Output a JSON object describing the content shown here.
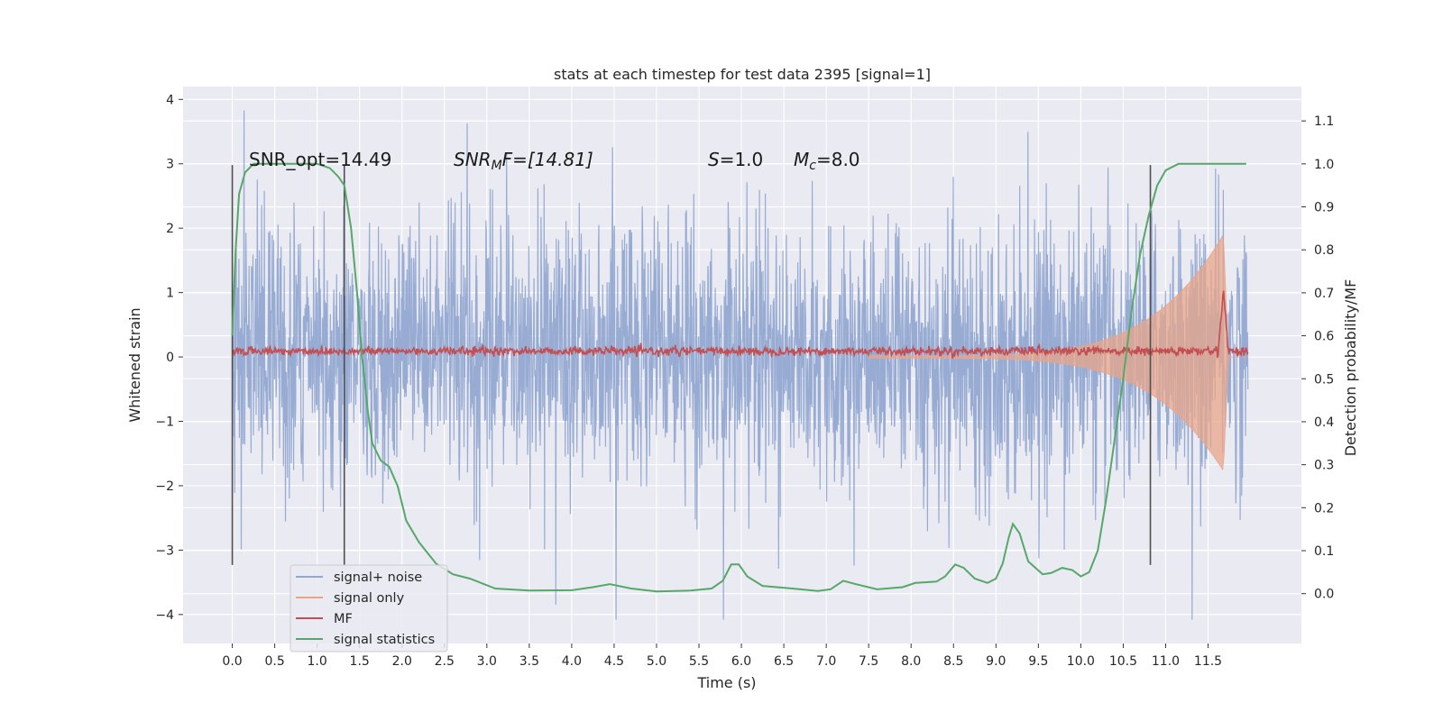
{
  "chart_data": {
    "type": "line",
    "title": "stats at each timestep for test data 2395 [signal=1]",
    "xlabel": "Time (s)",
    "ylabel": "Whitened strain",
    "y2label": "Detection probability/MF",
    "xlim": [
      -0.58,
      12.6
    ],
    "ylim": [
      -4.45,
      4.2
    ],
    "y2lim": [
      -0.116,
      1.18
    ],
    "xticks": [
      0.0,
      0.5,
      1.0,
      1.5,
      2.0,
      2.5,
      3.0,
      3.5,
      4.0,
      4.5,
      5.0,
      5.5,
      6.0,
      6.5,
      7.0,
      7.5,
      8.0,
      8.5,
      9.0,
      9.5,
      10.0,
      10.5,
      11.0,
      11.5
    ],
    "xtick_labels": [
      "0.0",
      "0.5",
      "1.0",
      "1.5",
      "2.0",
      "2.5",
      "3.0",
      "3.5",
      "4.0",
      "4.5",
      "5.0",
      "5.5",
      "6.0",
      "6.5",
      "7.0",
      "7.5",
      "8.0",
      "8.5",
      "9.0",
      "9.5",
      "10.0",
      "10.5",
      "11.0",
      "11.5"
    ],
    "yticks": [
      -4,
      -3,
      -2,
      -1,
      0,
      1,
      2,
      3,
      4
    ],
    "ytick_labels": [
      "−4",
      "−3",
      "−2",
      "−1",
      "0",
      "1",
      "2",
      "3",
      "4"
    ],
    "y2ticks": [
      0.0,
      0.1,
      0.2,
      0.3,
      0.4,
      0.5,
      0.6,
      0.7,
      0.8,
      0.9,
      1.0,
      1.1
    ],
    "y2tick_labels": [
      "0.0",
      "0.1",
      "0.2",
      "0.3",
      "0.4",
      "0.5",
      "0.6",
      "0.7",
      "0.8",
      "0.9",
      "1.0",
      "1.1"
    ],
    "grid": true,
    "legend_position": "lower-left",
    "annotations": {
      "snr_opt": "SNR_opt=14.49",
      "snr_mf_base": "SNR",
      "snr_mf_sub": "M",
      "snr_mf_rest": "F=[14.81]",
      "s_var": "S",
      "s_val": "=1.0",
      "mc_var": "M",
      "mc_sub": "c",
      "mc_val": "=8.0"
    },
    "vertical_markers": [
      0.0,
      1.32,
      10.82
    ],
    "vertical_marker_range": [
      -3.23,
      2.98
    ],
    "series": [
      {
        "name": "signal+ noise",
        "color": "#92a8d1",
        "t_range": [
          0.0,
          11.97
        ],
        "typical_amplitude": 1.1,
        "max": 3.83,
        "min": -4.08
      },
      {
        "name": "signal only",
        "color": "#e8a58a",
        "t_range": [
          7.5,
          11.97
        ],
        "amplitude_at_start": 0.02,
        "amplitude_peak": 1.9,
        "peak_time": 11.68
      },
      {
        "name": "MF",
        "color": "#c44e52",
        "t_range": [
          0.0,
          11.97
        ],
        "baseline": 0.09,
        "noise": 0.06,
        "peak_time": 11.68,
        "peak_value": 1.05
      },
      {
        "name": "signal statistics",
        "color": "#55a868",
        "axis": "right",
        "points": [
          [
            0.0,
            0.6
          ],
          [
            0.04,
            0.8
          ],
          [
            0.08,
            0.93
          ],
          [
            0.15,
            0.98
          ],
          [
            0.25,
            1.0
          ],
          [
            0.5,
            1.0
          ],
          [
            0.75,
            1.0
          ],
          [
            1.0,
            1.0
          ],
          [
            1.15,
            0.99
          ],
          [
            1.25,
            0.97
          ],
          [
            1.32,
            0.95
          ],
          [
            1.4,
            0.85
          ],
          [
            1.47,
            0.7
          ],
          [
            1.53,
            0.55
          ],
          [
            1.6,
            0.42
          ],
          [
            1.65,
            0.35
          ],
          [
            1.75,
            0.31
          ],
          [
            1.85,
            0.295
          ],
          [
            1.95,
            0.25
          ],
          [
            2.05,
            0.17
          ],
          [
            2.2,
            0.12
          ],
          [
            2.4,
            0.07
          ],
          [
            2.6,
            0.045
          ],
          [
            2.8,
            0.035
          ],
          [
            3.1,
            0.012
          ],
          [
            3.5,
            0.007
          ],
          [
            4.0,
            0.008
          ],
          [
            4.25,
            0.015
          ],
          [
            4.45,
            0.022
          ],
          [
            4.7,
            0.012
          ],
          [
            5.0,
            0.005
          ],
          [
            5.4,
            0.007
          ],
          [
            5.65,
            0.012
          ],
          [
            5.78,
            0.03
          ],
          [
            5.88,
            0.068
          ],
          [
            5.97,
            0.068
          ],
          [
            6.07,
            0.04
          ],
          [
            6.25,
            0.018
          ],
          [
            6.6,
            0.012
          ],
          [
            6.9,
            0.006
          ],
          [
            7.05,
            0.01
          ],
          [
            7.2,
            0.03
          ],
          [
            7.35,
            0.022
          ],
          [
            7.6,
            0.01
          ],
          [
            7.9,
            0.015
          ],
          [
            8.05,
            0.025
          ],
          [
            8.3,
            0.028
          ],
          [
            8.4,
            0.04
          ],
          [
            8.52,
            0.068
          ],
          [
            8.62,
            0.06
          ],
          [
            8.75,
            0.035
          ],
          [
            8.9,
            0.025
          ],
          [
            9.0,
            0.035
          ],
          [
            9.08,
            0.07
          ],
          [
            9.15,
            0.13
          ],
          [
            9.2,
            0.162
          ],
          [
            9.28,
            0.14
          ],
          [
            9.38,
            0.075
          ],
          [
            9.55,
            0.045
          ],
          [
            9.65,
            0.048
          ],
          [
            9.78,
            0.06
          ],
          [
            9.9,
            0.055
          ],
          [
            10.0,
            0.04
          ],
          [
            10.1,
            0.05
          ],
          [
            10.2,
            0.1
          ],
          [
            10.3,
            0.22
          ],
          [
            10.4,
            0.36
          ],
          [
            10.5,
            0.5
          ],
          [
            10.6,
            0.66
          ],
          [
            10.7,
            0.79
          ],
          [
            10.8,
            0.88
          ],
          [
            10.9,
            0.95
          ],
          [
            11.0,
            0.985
          ],
          [
            11.15,
            1.0
          ],
          [
            11.5,
            1.0
          ],
          [
            11.95,
            1.0
          ]
        ]
      }
    ]
  }
}
